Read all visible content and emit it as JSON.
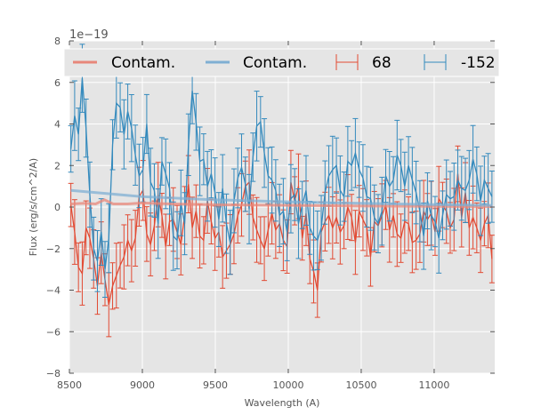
{
  "chart_data": {
    "type": "line",
    "title": "",
    "xlabel": "Wavelength (A)",
    "ylabel": "Flux (erg/s/cm^2/A)",
    "offset_label": "1e−19",
    "xlim": [
      8500,
      11415
    ],
    "ylim": [
      -8,
      8
    ],
    "y_scale_exponent": -19,
    "xticks": [
      8500,
      9000,
      9500,
      10000,
      10500,
      11000
    ],
    "xtick_labels": [
      "8500",
      "9000",
      "9500",
      "10000",
      "10500",
      "11000"
    ],
    "yticks": [
      -8,
      -6,
      -4,
      -2,
      0,
      2,
      4,
      6,
      8
    ],
    "ytick_labels": [
      "−8",
      "−6",
      "−4",
      "−2",
      "0",
      "2",
      "4",
      "6",
      "8"
    ],
    "grid": true,
    "legend_position": "top",
    "legend": [
      {
        "label": "Contam.",
        "kind": "line",
        "color": "#e8877a"
      },
      {
        "label": "Contam.",
        "kind": "line",
        "color": "#7fafd3"
      },
      {
        "label": "68",
        "kind": "errorbar",
        "color": "#e24a33"
      },
      {
        "label": "-152",
        "kind": "errorbar",
        "color": "#348abd"
      }
    ],
    "series": [
      {
        "name": "68",
        "kind": "errorbar",
        "color": "#e24a33",
        "x_start": 8510,
        "x_step": 26,
        "y": [
          0.1,
          -1.2,
          -2.9,
          -3.2,
          -1.0,
          -1.5,
          -2.5,
          -3.8,
          -2.2,
          -3.5,
          -4.7,
          -3.8,
          -3.3,
          -2.8,
          -2.4,
          -1.6,
          -2.1,
          -1.5,
          0.5,
          0.8,
          -1.3,
          -1.8,
          -0.9,
          0.6,
          -0.4,
          -1.9,
          -0.7,
          -0.6,
          -1.2,
          -1.8,
          -0.4,
          1.1,
          -1.0,
          -0.2,
          -1.4,
          -1.6,
          0.3,
          -0.7,
          -1.5,
          -1.2,
          -2.4,
          -2.1,
          -1.8,
          -1.3,
          -0.4,
          0.1,
          1.0,
          1.2,
          -0.5,
          -1.1,
          -1.6,
          -2.0,
          -1.1,
          -0.3,
          -1.1,
          -0.8,
          -1.6,
          -1.9,
          1.2,
          0.3,
          1.0,
          -1.5,
          -0.3,
          -2.5,
          -3.1,
          -4.0,
          -1.2,
          -0.7,
          -0.4,
          -1.0,
          -0.5,
          -1.2,
          -0.9,
          0.0,
          -0.5,
          -1.7,
          -0.2,
          -0.6,
          -1.0,
          -2.4,
          -0.7,
          -0.9,
          -0.4,
          0.1,
          -1.1,
          -0.4,
          -1.3,
          -1.5,
          -0.7,
          -0.8,
          -1.7,
          -1.6,
          -1.3,
          -0.2,
          -0.6,
          -0.3,
          -1.2,
          0.4,
          0.1,
          -0.2,
          -1.0,
          -0.6,
          1.6,
          -0.5,
          0.7,
          -1.0,
          -0.5,
          -1.0,
          -1.6,
          -0.8,
          -0.4,
          -2.5,
          -0.3,
          -1.3,
          -0.5
        ],
        "err": 1.3
      },
      {
        "name": "-152",
        "kind": "errorbar",
        "color": "#348abd",
        "x_start": 8510,
        "x_step": 26,
        "y": [
          2.8,
          4.4,
          3.5,
          6.2,
          3.8,
          0.6,
          -2.0,
          -2.6,
          -1.2,
          -3.0,
          -1.5,
          3.0,
          5.0,
          4.8,
          3.5,
          4.6,
          3.8,
          2.5,
          1.5,
          1.8,
          4.0,
          1.2,
          0.8,
          -0.8,
          2.2,
          1.6,
          0.9,
          -1.4,
          -1.6,
          0.2,
          -0.8,
          3.0,
          5.6,
          4.1,
          2.2,
          2.3,
          1.0,
          1.6,
          0.7,
          -0.6,
          0.9,
          -0.8,
          -1.7,
          0.3,
          1.4,
          1.9,
          1.1,
          -0.1,
          2.4,
          3.9,
          4.1,
          2.6,
          1.5,
          1.3,
          0.8,
          -0.4,
          -0.2,
          -1.2,
          0.4,
          0.6,
          -0.8,
          0.1,
          0.8,
          -1.0,
          -1.4,
          -1.6,
          -1.0,
          0.7,
          1.5,
          1.8,
          2.0,
          0.8,
          0.5,
          2.2,
          2.0,
          2.6,
          1.8,
          1.4,
          0.5,
          0.4,
          -0.5,
          -0.8,
          -0.2,
          1.5,
          1.0,
          1.3,
          2.5,
          2.0,
          1.0,
          2.0,
          1.3,
          0.7,
          -0.2,
          -1.4,
          0.3,
          -0.4,
          -0.7,
          -1.5,
          -0.4,
          0.6,
          0.4,
          0.5,
          1.3,
          0.9,
          0.8,
          1.3,
          2.3,
          1.6,
          0.3,
          1.3,
          0.9,
          0.5,
          0.4,
          0.6,
          0.0
        ],
        "err": 1.4
      },
      {
        "name": "Contam. (68)",
        "kind": "line",
        "color": "#e8877a",
        "x": [
          8510,
          8600,
          8680,
          8740,
          8800,
          8900,
          9000,
          9200,
          9600,
          10000,
          10500,
          11000,
          11400
        ],
        "y": [
          0.15,
          0.18,
          0.15,
          0.35,
          0.15,
          0.15,
          0.2,
          0.15,
          0.1,
          0.08,
          0.05,
          0.03,
          0.02
        ]
      },
      {
        "name": "Contam. (-152)",
        "kind": "line",
        "color": "#7fafd3",
        "x": [
          8510,
          9000,
          9500,
          10000,
          10500,
          11000,
          11400
        ],
        "y": [
          0.8,
          0.5,
          0.35,
          0.25,
          0.18,
          0.12,
          0.08
        ]
      }
    ]
  }
}
